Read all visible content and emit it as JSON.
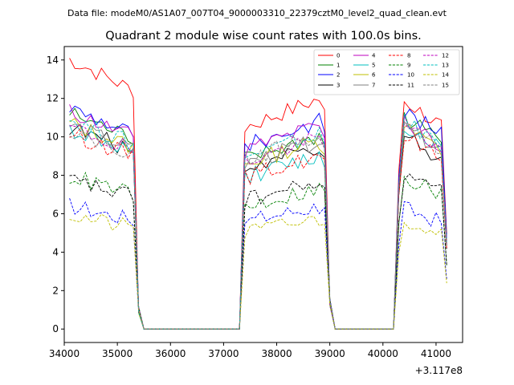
{
  "chart_data": {
    "type": "line",
    "suptitle": "Data file: modeM0/AS1A07_007T04_9000003310_22379cztM0_level2_quad_clean.evt",
    "title": "Quadrant 2 module wise count rates with 100.0s bins.",
    "xlabel": "",
    "ylabel": "",
    "x_offset_label": "+3.117e8",
    "xlim": [
      34000,
      41500
    ],
    "ylim": [
      -0.7,
      14.7
    ],
    "xticks": [
      34000,
      35000,
      36000,
      37000,
      38000,
      39000,
      40000,
      41000
    ],
    "xtick_labels": [
      "34000",
      "35000",
      "36000",
      "37000",
      "38000",
      "39000",
      "40000",
      "41000"
    ],
    "yticks": [
      0,
      2,
      4,
      6,
      8,
      10,
      12,
      14
    ],
    "ytick_labels": [
      "0",
      "2",
      "4",
      "6",
      "8",
      "10",
      "12",
      "14"
    ],
    "legend_position": "top-right",
    "legend_columns": 4,
    "series": [
      {
        "name": "0",
        "color": "#ff0000",
        "dash": "solid",
        "levels": [
          13.5,
          10.5,
          11.0
        ]
      },
      {
        "name": "1",
        "color": "#008000",
        "dash": "solid",
        "levels": [
          11.0,
          8.8,
          10.2
        ]
      },
      {
        "name": "2",
        "color": "#0000ff",
        "dash": "solid",
        "levels": [
          11.3,
          9.5,
          10.5
        ]
      },
      {
        "name": "3",
        "color": "#000000",
        "dash": "solid",
        "levels": [
          10.3,
          8.3,
          9.3
        ]
      },
      {
        "name": "4",
        "color": "#bf00bf",
        "dash": "solid",
        "levels": [
          11.1,
          9.3,
          10.0
        ]
      },
      {
        "name": "5",
        "color": "#00bfbf",
        "dash": "solid",
        "levels": [
          10.2,
          7.9,
          9.8
        ]
      },
      {
        "name": "6",
        "color": "#bfbf00",
        "dash": "solid",
        "levels": [
          10.5,
          8.6,
          9.7
        ]
      },
      {
        "name": "7",
        "color": "#808080",
        "dash": "solid",
        "levels": [
          10.4,
          8.6,
          9.7
        ]
      },
      {
        "name": "8",
        "color": "#ff0000",
        "dash": "dashed",
        "levels": [
          10.0,
          7.9,
          9.3
        ]
      },
      {
        "name": "9",
        "color": "#008000",
        "dash": "dashed",
        "levels": [
          7.8,
          6.4,
          7.3
        ]
      },
      {
        "name": "10",
        "color": "#0000ff",
        "dash": "dashed",
        "levels": [
          6.3,
          5.6,
          5.8
        ]
      },
      {
        "name": "11",
        "color": "#000000",
        "dash": "dashed",
        "levels": [
          7.6,
          6.7,
          7.4
        ]
      },
      {
        "name": "12",
        "color": "#bf00bf",
        "dash": "dashed",
        "levels": [
          10.3,
          8.7,
          9.8
        ]
      },
      {
        "name": "13",
        "color": "#00bfbf",
        "dash": "dashed",
        "levels": [
          10.7,
          8.9,
          10.0
        ]
      },
      {
        "name": "14",
        "color": "#bfbf00",
        "dash": "dashed",
        "levels": [
          5.8,
          5.0,
          5.3
        ]
      },
      {
        "name": "15",
        "color": "#808080",
        "dash": "dashed",
        "levels": [
          10.2,
          8.8,
          9.8
        ]
      }
    ],
    "segments": [
      {
        "on_start": 34100,
        "on_end": 35300,
        "off_start": 35500,
        "off_end": 37300
      },
      {
        "on_start": 37400,
        "on_end": 38900,
        "off_start": 39100,
        "off_end": 40200
      },
      {
        "on_start": 40300,
        "on_end": 41200
      }
    ]
  }
}
